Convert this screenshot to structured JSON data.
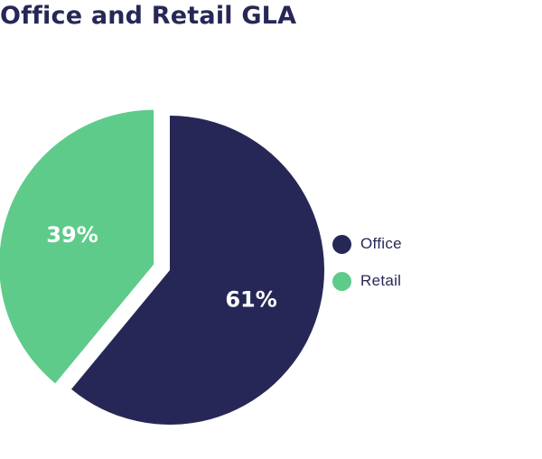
{
  "chart_data": {
    "type": "pie",
    "title": "Office and Retail GLA",
    "categories": [
      "Office",
      "Retail"
    ],
    "values": [
      61,
      39
    ],
    "data_labels": [
      "61%",
      "39%"
    ],
    "colors": [
      "#272757",
      "#5ecb8a"
    ],
    "label_color": "#ffffff",
    "exploded": [
      "Retail"
    ],
    "legend_placement": "right"
  }
}
